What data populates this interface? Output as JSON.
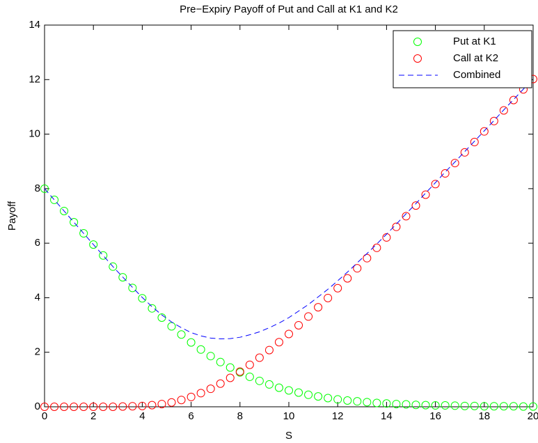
{
  "chart_data": {
    "type": "line",
    "title": "Pre−Expiry Payoff of Put and Call at K1 and K2",
    "xlabel": "S",
    "ylabel": "Payoff",
    "x": [
      0,
      0.4,
      0.8,
      1.2,
      1.6,
      2,
      2.4,
      2.8,
      3.2,
      3.6,
      4,
      4.4,
      4.8,
      5.2,
      5.6,
      6,
      6.4,
      6.8,
      7.2,
      7.6,
      8,
      8.4,
      8.8,
      9.2,
      9.6,
      10,
      10.4,
      10.8,
      11.2,
      11.6,
      12,
      12.4,
      12.8,
      13.2,
      13.6,
      14,
      14.4,
      14.8,
      15.2,
      15.6,
      16,
      16.4,
      16.8,
      17.2,
      17.6,
      18,
      18.4,
      18.8,
      19.2,
      19.6,
      20
    ],
    "series": [
      {
        "name": "Put at K1",
        "color": "#00ff00",
        "marker": "circle",
        "linestyle": "none",
        "values": [
          8,
          7.59,
          7.18,
          6.77,
          6.36,
          5.95,
          5.55,
          5.14,
          4.75,
          4.36,
          3.98,
          3.61,
          3.27,
          2.95,
          2.65,
          2.36,
          2.1,
          1.86,
          1.64,
          1.44,
          1.26,
          1.1,
          0.95,
          0.82,
          0.7,
          0.6,
          0.52,
          0.44,
          0.38,
          0.32,
          0.27,
          0.23,
          0.2,
          0.17,
          0.14,
          0.12,
          0.1,
          0.09,
          0.07,
          0.06,
          0.05,
          0.05,
          0.04,
          0.03,
          0.03,
          0.02,
          0.02,
          0.02,
          0.02,
          0.01,
          0.01
        ]
      },
      {
        "name": "Call at K2",
        "color": "#ff0000",
        "marker": "circle",
        "linestyle": "none",
        "values": [
          0,
          0,
          0,
          0,
          0,
          0,
          0,
          0,
          0.01,
          0.02,
          0.03,
          0.06,
          0.1,
          0.16,
          0.25,
          0.36,
          0.5,
          0.66,
          0.85,
          1.06,
          1.29,
          1.54,
          1.8,
          2.08,
          2.37,
          2.67,
          2.99,
          3.31,
          3.65,
          3.99,
          4.35,
          4.71,
          5.08,
          5.45,
          5.83,
          6.21,
          6.6,
          6.99,
          7.38,
          7.78,
          8.17,
          8.56,
          8.94,
          9.33,
          9.71,
          10.1,
          10.48,
          10.87,
          11.25,
          11.64,
          12.02
        ]
      },
      {
        "name": "Combined",
        "color": "#0000ff",
        "marker": "none",
        "linestyle": "dashed",
        "values": [
          8,
          7.59,
          7.18,
          6.77,
          6.36,
          5.95,
          5.55,
          5.14,
          4.76,
          4.38,
          4.01,
          3.67,
          3.37,
          3.11,
          2.9,
          2.72,
          2.6,
          2.52,
          2.49,
          2.5,
          2.55,
          2.64,
          2.75,
          2.9,
          3.07,
          3.27,
          3.51,
          3.75,
          4.03,
          4.31,
          4.62,
          4.94,
          5.28,
          5.62,
          5.97,
          6.33,
          6.7,
          7.08,
          7.45,
          7.84,
          8.22,
          8.61,
          8.98,
          9.36,
          9.74,
          10.12,
          10.5,
          10.89,
          11.27,
          11.65,
          12.03
        ]
      }
    ],
    "xlim": [
      0,
      20
    ],
    "xticks": [
      0,
      2,
      4,
      6,
      8,
      10,
      12,
      14,
      16,
      18,
      20
    ],
    "ylim": [
      0,
      14
    ],
    "yticks": [
      0,
      2,
      4,
      6,
      8,
      10,
      12,
      14
    ],
    "grid": false,
    "legend": "upper right"
  }
}
